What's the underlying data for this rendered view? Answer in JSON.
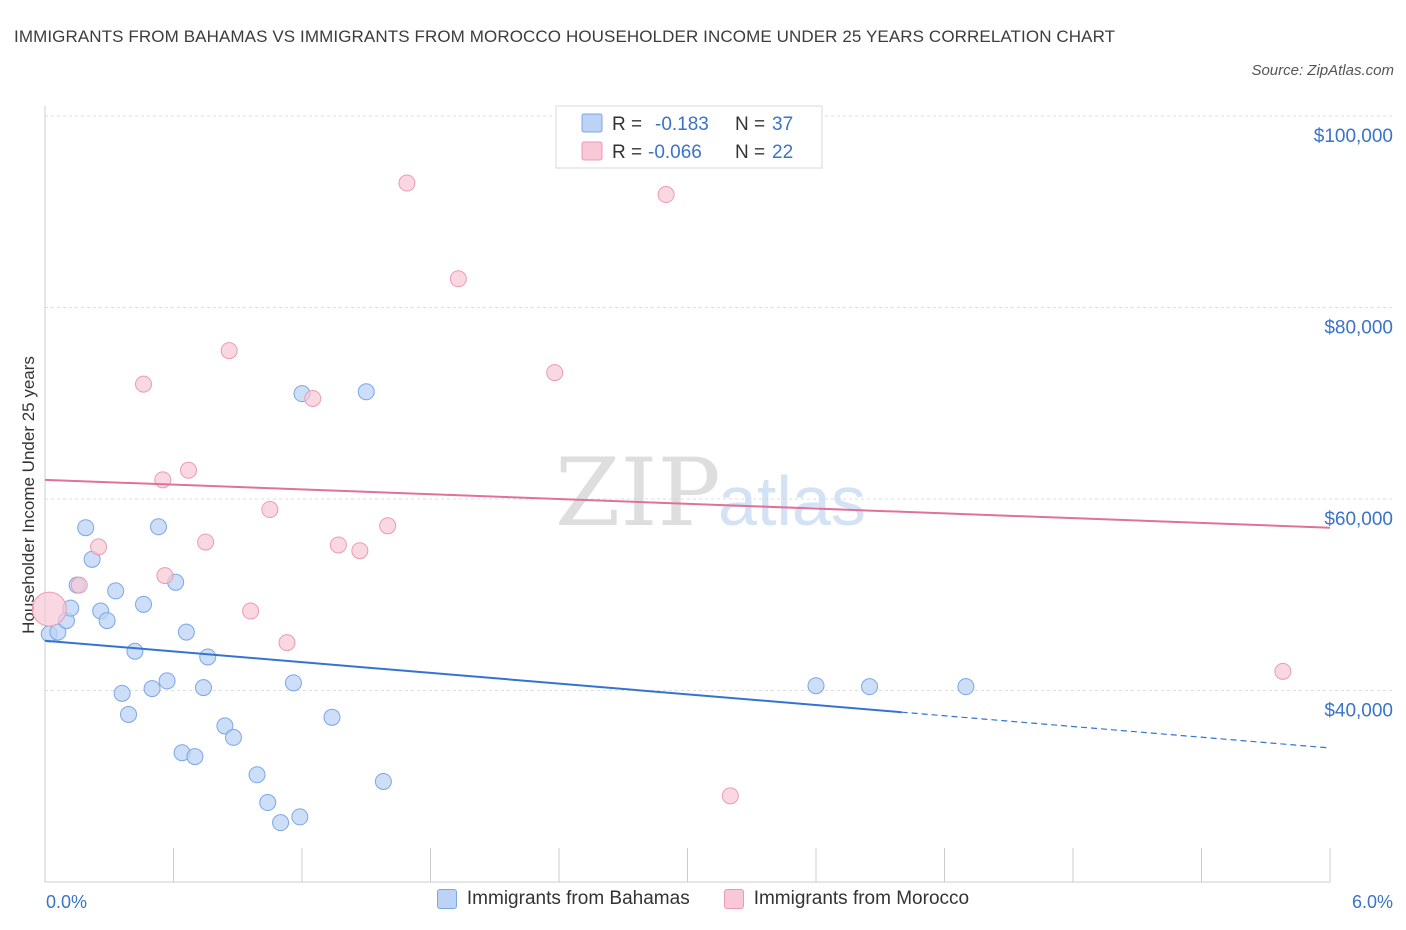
{
  "title": "IMMIGRANTS FROM BAHAMAS VS IMMIGRANTS FROM MOROCCO HOUSEHOLDER INCOME UNDER 25 YEARS CORRELATION CHART",
  "source": "Source: ZipAtlas.com",
  "watermark": {
    "zip": "ZIP",
    "atlas": "atlas"
  },
  "colors": {
    "bahamas_fill": "#bcd3f5",
    "bahamas_stroke": "#7aa7e6",
    "bahamas_line": "#3374d1",
    "morocco_fill": "#f8c8d6",
    "morocco_stroke": "#ec9ab4",
    "morocco_line": "#e0719b",
    "tick_text": "#3a73c9"
  },
  "legend": {
    "bahamas": {
      "r_label": "R =",
      "r_value": "-0.183",
      "n_label": "N =",
      "n_value": "37"
    },
    "morocco": {
      "r_label": "R =",
      "r_value": "-0.066",
      "n_label": "N =",
      "n_value": "22"
    }
  },
  "chart_data": {
    "type": "scatter",
    "title": "IMMIGRANTS FROM BAHAMAS VS IMMIGRANTS FROM MOROCCO HOUSEHOLDER INCOME UNDER 25 YEARS CORRELATION CHART",
    "xlabel": "",
    "ylabel": "Householder Income Under 25 years",
    "xlim": [
      0,
      6
    ],
    "ylim": [
      20000,
      100000
    ],
    "x_tick_labels": [
      "0.0%",
      "6.0%"
    ],
    "y_ticks": [
      40000,
      60000,
      80000,
      100000
    ],
    "y_tick_labels": [
      "$40,000",
      "$60,000",
      "$80,000",
      "$100,000"
    ],
    "grid": true,
    "legend_position": "top-center",
    "series": [
      {
        "name": "Immigrants from Bahamas",
        "points": [
          [
            0.02,
            45900
          ],
          [
            0.06,
            46100
          ],
          [
            0.1,
            47300
          ],
          [
            0.12,
            48600
          ],
          [
            0.15,
            51000
          ],
          [
            0.19,
            57000
          ],
          [
            0.22,
            53700
          ],
          [
            0.26,
            48300
          ],
          [
            0.29,
            47300
          ],
          [
            0.33,
            50400
          ],
          [
            0.36,
            39700
          ],
          [
            0.39,
            37500
          ],
          [
            0.42,
            44100
          ],
          [
            0.46,
            49000
          ],
          [
            0.5,
            40200
          ],
          [
            0.53,
            57100
          ],
          [
            0.57,
            41000
          ],
          [
            0.61,
            51300
          ],
          [
            0.64,
            33500
          ],
          [
            0.66,
            46100
          ],
          [
            0.7,
            33100
          ],
          [
            0.74,
            40300
          ],
          [
            0.76,
            43500
          ],
          [
            0.84,
            36300
          ],
          [
            0.88,
            35100
          ],
          [
            0.99,
            31200
          ],
          [
            1.04,
            28300
          ],
          [
            1.1,
            26200
          ],
          [
            1.16,
            40800
          ],
          [
            1.2,
            71000
          ],
          [
            1.19,
            26800
          ],
          [
            1.34,
            37200
          ],
          [
            1.5,
            71200
          ],
          [
            1.58,
            30500
          ],
          [
            3.6,
            40500
          ],
          [
            3.85,
            40400
          ],
          [
            4.3,
            40400
          ]
        ],
        "trend": {
          "x": [
            0,
            6
          ],
          "y": [
            45200,
            34000
          ],
          "solid_until_x": 4.0
        }
      },
      {
        "name": "Immigrants from Morocco",
        "points": [
          [
            0.02,
            48500
          ],
          [
            0.16,
            51000
          ],
          [
            0.25,
            55000
          ],
          [
            0.46,
            72000
          ],
          [
            0.55,
            62000
          ],
          [
            0.56,
            52000
          ],
          [
            0.67,
            63000
          ],
          [
            0.75,
            55500
          ],
          [
            0.86,
            75500
          ],
          [
            0.96,
            48300
          ],
          [
            1.05,
            58900
          ],
          [
            1.13,
            45000
          ],
          [
            1.25,
            70500
          ],
          [
            1.37,
            55200
          ],
          [
            1.47,
            54600
          ],
          [
            1.6,
            57200
          ],
          [
            1.69,
            93000
          ],
          [
            1.93,
            83000
          ],
          [
            2.38,
            73200
          ],
          [
            2.9,
            91800
          ],
          [
            3.2,
            29000
          ],
          [
            5.78,
            42000
          ]
        ],
        "trend": {
          "x": [
            0,
            6
          ],
          "y": [
            62000,
            57000
          ]
        }
      }
    ]
  },
  "bottom_legend": {
    "bahamas": "Immigrants from Bahamas",
    "morocco": "Immigrants from Morocco"
  }
}
